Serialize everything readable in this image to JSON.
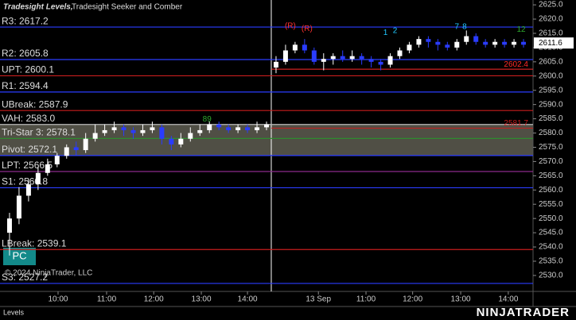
{
  "chart_data": {
    "type": "candlestick",
    "title": "Tradesight Levels,",
    "subtitle": "Tradesight Seeker and Comber",
    "panel_label": "Levels",
    "copyright": "© 2024 NinjaTrader, LLC",
    "button": "PC",
    "brand": "NINJATRADER",
    "up_color": "#ffffff",
    "down_color": "#2a3cff",
    "xlim": [
      0,
      112
    ],
    "xticks": [
      {
        "value": 12.2,
        "label": "10:00"
      },
      {
        "value": 22.4,
        "label": "11:00"
      },
      {
        "value": 32.3,
        "label": "12:00"
      },
      {
        "value": 42.3,
        "label": "13:00"
      },
      {
        "value": 52,
        "label": "14:00"
      },
      {
        "value": 66.9,
        "label": "13 Sep"
      },
      {
        "value": 76.9,
        "label": "11:00"
      },
      {
        "value": 86.7,
        "label": "12:00"
      },
      {
        "value": 96.8,
        "label": "13:00"
      },
      {
        "value": 106.8,
        "label": "14:00"
      }
    ],
    "session_break": 57,
    "ylim": [
      2524.4,
      2626.7
    ],
    "yticks": [
      {
        "value": 2530,
        "label": "2530.0"
      },
      {
        "value": 2535,
        "label": "2535.0"
      },
      {
        "value": 2540,
        "label": "2540.0"
      },
      {
        "value": 2545,
        "label": "2545.0"
      },
      {
        "value": 2550,
        "label": "2550.0"
      },
      {
        "value": 2555,
        "label": "2555.0"
      },
      {
        "value": 2560,
        "label": "2560.0"
      },
      {
        "value": 2565,
        "label": "2565.0"
      },
      {
        "value": 2570,
        "label": "2570.0"
      },
      {
        "value": 2575,
        "label": "2575.0"
      },
      {
        "value": 2580,
        "label": "2580.0"
      },
      {
        "value": 2585,
        "label": "2585.0"
      },
      {
        "value": 2590,
        "label": "2590.0"
      },
      {
        "value": 2595,
        "label": "2595.0"
      },
      {
        "value": 2600,
        "label": "2600.0"
      },
      {
        "value": 2605,
        "label": "2605.0"
      },
      {
        "value": 2610,
        "label": "2610.0"
      },
      {
        "value": 2615,
        "label": "2615.0"
      },
      {
        "value": 2620,
        "label": "2620.0"
      },
      {
        "value": 2625,
        "label": "2625.0"
      }
    ],
    "x": [
      2,
      4,
      6,
      8,
      10,
      12,
      14,
      16,
      18,
      20,
      22,
      24,
      26,
      28,
      30,
      32,
      34,
      36,
      38,
      40,
      42,
      44,
      46,
      48,
      50,
      52,
      54,
      56,
      58,
      60,
      62,
      64,
      66,
      68,
      70,
      72,
      74,
      76,
      78,
      80,
      82,
      84,
      86,
      88,
      90,
      92,
      94,
      96,
      98,
      100,
      102,
      104,
      106,
      108,
      110
    ],
    "open": [
      2545,
      2550,
      2558,
      2562,
      2566,
      2569,
      2572,
      2575,
      2574,
      2578,
      2580,
      2581,
      2582,
      2581,
      2580,
      2581,
      2582,
      2578,
      2576,
      2578,
      2580,
      2581,
      2583,
      2582,
      2581,
      2582,
      2581,
      2582,
      2603,
      2605,
      2609,
      2611,
      2609,
      2605,
      2606,
      2607,
      2606,
      2607,
      2606,
      2605,
      2604,
      2607,
      2609,
      2611,
      2613,
      2612,
      2611,
      2610,
      2612,
      2614,
      2612,
      2611,
      2612,
      2611,
      2612
    ],
    "high": [
      2552,
      2561,
      2564,
      2568,
      2571,
      2573,
      2576,
      2577,
      2580,
      2583,
      2583,
      2584,
      2583,
      2582,
      2583,
      2584,
      2583,
      2579,
      2580,
      2582,
      2583,
      2584,
      2584,
      2583,
      2583,
      2583,
      2584,
      2584,
      2607,
      2611,
      2612,
      2613,
      2610,
      2608,
      2608,
      2609,
      2609,
      2608,
      2607,
      2606,
      2608,
      2610,
      2612,
      2614,
      2614,
      2613,
      2612,
      2613,
      2616,
      2615,
      2613,
      2613,
      2613,
      2613,
      2613
    ],
    "low": [
      2537,
      2548,
      2556,
      2560,
      2565,
      2568,
      2571,
      2572,
      2573,
      2577,
      2579,
      2580,
      2579,
      2578,
      2579,
      2580,
      2576,
      2574,
      2575,
      2577,
      2579,
      2580,
      2581,
      2580,
      2580,
      2580,
      2580,
      2581,
      2601,
      2604,
      2608,
      2608,
      2604,
      2602,
      2604,
      2605,
      2605,
      2604,
      2603,
      2602,
      2603,
      2606,
      2608,
      2610,
      2610,
      2609,
      2609,
      2609,
      2611,
      2611,
      2610,
      2610,
      2610,
      2610,
      2610
    ],
    "close": [
      2550,
      2558,
      2562,
      2566,
      2569,
      2572,
      2575,
      2574,
      2578,
      2580,
      2581,
      2582,
      2581,
      2580,
      2581,
      2582,
      2578,
      2576,
      2578,
      2580,
      2581,
      2583,
      2582,
      2581,
      2582,
      2581,
      2582,
      2583,
      2605,
      2609,
      2611,
      2609,
      2605,
      2606,
      2607,
      2606,
      2607,
      2606,
      2605,
      2604,
      2607,
      2609,
      2611,
      2613,
      2612,
      2611,
      2610,
      2612,
      2614,
      2612,
      2611,
      2612,
      2611,
      2612,
      2611
    ],
    "levels": [
      {
        "value": 2617.2,
        "label": "R3: 2617.2",
        "color": "#2a3cff"
      },
      {
        "value": 2605.8,
        "label": "R2: 2605.8",
        "color": "#2a3cff"
      },
      {
        "value": 2600.1,
        "label": "UPT: 2600.1",
        "color": "#c81e1e"
      },
      {
        "value": 2594.4,
        "label": "R1: 2594.4",
        "color": "#2a3cff"
      },
      {
        "value": 2587.9,
        "label": "UBreak: 2587.9",
        "color": "#c81e1e"
      },
      {
        "value": 2583.0,
        "label": "VAH: 2583.0",
        "color": "#bbbbbb"
      },
      {
        "value": 2578.1,
        "label": "Tri-Star 3: 2578.1",
        "color": "#2e8b2e"
      },
      {
        "value": 2572.1,
        "label": "Pivot: 2572.1",
        "color": "#2a3cff"
      },
      {
        "value": 2566.5,
        "label": "LPT: 2566.5",
        "color": "#8b2a8b"
      },
      {
        "value": 2560.8,
        "label": "S1: 2560.8",
        "color": "#2a3cff"
      },
      {
        "value": 2539.1,
        "label": "LBreak: 2539.1",
        "color": "#c81e1e"
      },
      {
        "value": 2527.2,
        "label": "S3: 2527.2",
        "color": "#2a3cff"
      }
    ],
    "price_lines": [
      {
        "value": 2581.7,
        "label": "2581.7",
        "color": "#c81e1e"
      },
      {
        "value": 2602.4,
        "label": "2602.4",
        "color": "#ff2a2a"
      }
    ],
    "last_price": {
      "value": 2611.6,
      "label": "2611.6"
    },
    "annotations": [
      {
        "text": "(R)",
        "x": 61,
        "y": 2617.5,
        "color": "#ff3030"
      },
      {
        "text": "(R)",
        "x": 64.5,
        "y": 2616.5,
        "color": "#ff3030"
      },
      {
        "text": "89",
        "x": 43.5,
        "y": 2584.8,
        "color": "#2eaa2e"
      },
      {
        "text": "12",
        "x": 109.5,
        "y": 2616.3,
        "color": "#2eaa2e"
      },
      {
        "text": "1",
        "x": 81,
        "y": 2615.2,
        "color": "#20c8ff"
      },
      {
        "text": "2",
        "x": 83,
        "y": 2615.8,
        "color": "#20c8ff"
      },
      {
        "text": "7",
        "x": 96,
        "y": 2617.3,
        "color": "#20c8ff"
      },
      {
        "text": "8",
        "x": 97.6,
        "y": 2617.3,
        "color": "#20c8ff"
      }
    ]
  }
}
